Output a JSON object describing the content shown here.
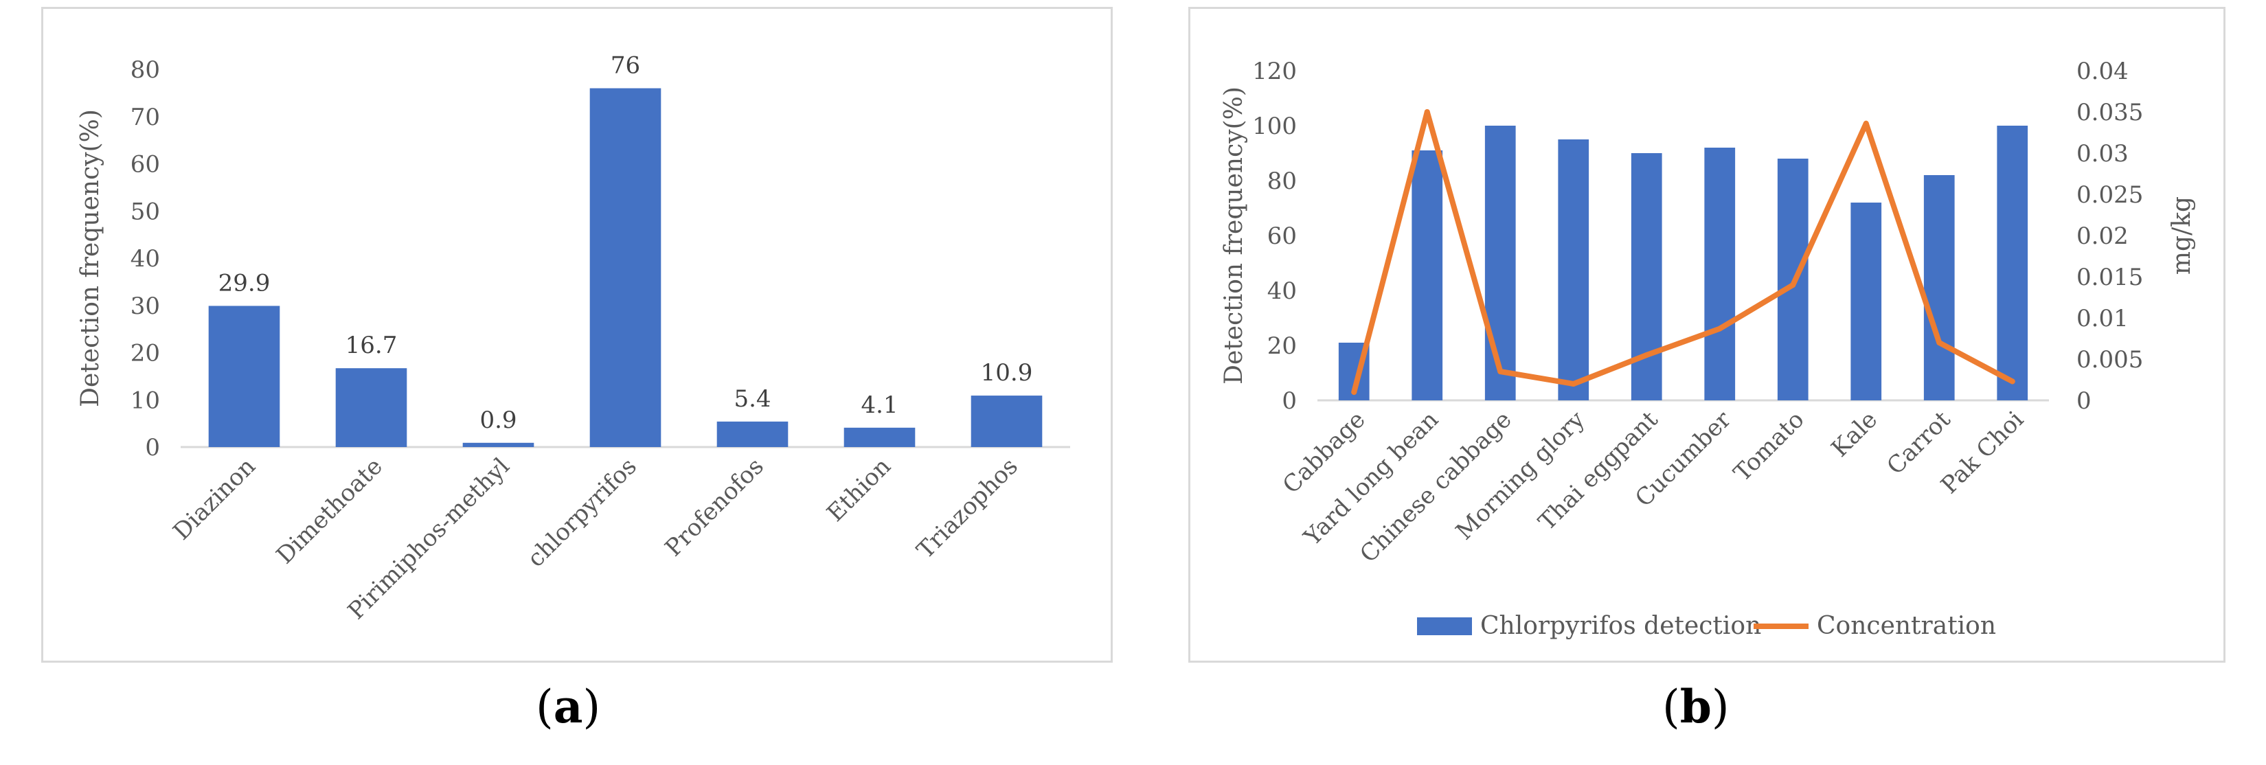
{
  "chart_data": [
    {
      "panel": "a",
      "type": "bar",
      "title": "",
      "xlabel": "",
      "ylabel": "Detection frequency(%)",
      "ylim": [
        0,
        80
      ],
      "yticks": [
        "0",
        "10",
        "20",
        "30",
        "40",
        "50",
        "60",
        "70",
        "80"
      ],
      "categories": [
        "Diazinon",
        "Dimethoate",
        "Pirimiphos-methyl",
        "chlorpyrifos",
        "Profenofos",
        "Ethion",
        "Triazophos"
      ],
      "values": [
        29.9,
        16.7,
        0.9,
        76,
        5.4,
        4.1,
        10.9
      ],
      "data_labels": [
        "29.9",
        "16.7",
        "0.9",
        "76",
        "5.4",
        "4.1",
        "10.9"
      ],
      "bar_color": "#4472C4"
    },
    {
      "panel": "b",
      "type": "bar",
      "title": "",
      "xlabel": "",
      "ylabel": "Detection frequency(%)",
      "y2label": "mg/kg",
      "ylim": [
        0,
        120
      ],
      "y2lim": [
        0,
        0.04
      ],
      "yticks": [
        "0",
        "20",
        "40",
        "60",
        "80",
        "100",
        "120"
      ],
      "y2ticks": [
        "0",
        "0.005",
        "0.01",
        "0.015",
        "0.02",
        "0.025",
        "0.03",
        "0.035",
        "0.04"
      ],
      "categories": [
        "Cabbage",
        "Yard long bean",
        "Chinese cabbage",
        "Morning glory",
        "Thai eggpant",
        "Cucumber",
        "Tomato",
        "Kale",
        "Carrot",
        "Pak Choi"
      ],
      "series": [
        {
          "name": "Chlorpyrifos detection",
          "type": "bar",
          "axis": "left",
          "color": "#4472C4",
          "values": [
            21,
            91,
            100,
            95,
            90,
            92,
            88,
            72,
            82,
            100
          ]
        },
        {
          "name": "Concentration",
          "type": "line",
          "axis": "right",
          "color": "#ED7D31",
          "values": [
            0.001,
            0.035,
            0.0035,
            0.002,
            0.0055,
            0.0087,
            0.014,
            0.0336,
            0.007,
            0.0023
          ]
        }
      ],
      "legend_position": "bottom"
    }
  ],
  "captions": {
    "a_letter": "a",
    "b_letter": "b"
  }
}
